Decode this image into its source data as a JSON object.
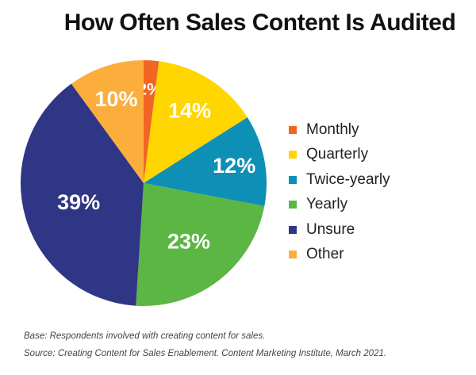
{
  "title": "How Often Sales Content Is Audited",
  "chart_data": {
    "type": "pie",
    "title": "How Often Sales Content Is Audited",
    "categories": [
      "Monthly",
      "Quarterly",
      "Twice-yearly",
      "Yearly",
      "Unsure",
      "Other"
    ],
    "values": [
      2,
      14,
      12,
      23,
      39,
      10
    ],
    "labels": [
      "2%",
      "14%",
      "12%",
      "23%",
      "39%",
      "10%"
    ],
    "colors": [
      "#F26522",
      "#FFD600",
      "#0E8FB5",
      "#5CB644",
      "#303686",
      "#FBAE3C"
    ],
    "start_angle_deg": 0,
    "direction": "clockwise",
    "legend_position": "right"
  },
  "legend": [
    {
      "label": "Monthly",
      "color": "#F26522"
    },
    {
      "label": "Quarterly",
      "color": "#FFD600"
    },
    {
      "label": "Twice-yearly",
      "color": "#0E8FB5"
    },
    {
      "label": "Yearly",
      "color": "#5CB644"
    },
    {
      "label": "Unsure",
      "color": "#303686"
    },
    {
      "label": "Other",
      "color": "#FBAE3C"
    }
  ],
  "footnotes": {
    "base": "Base: Respondents involved with creating content for sales.",
    "source": "Source: Creating Content for Sales Enablement. Content Marketing Institute, March 2021."
  }
}
